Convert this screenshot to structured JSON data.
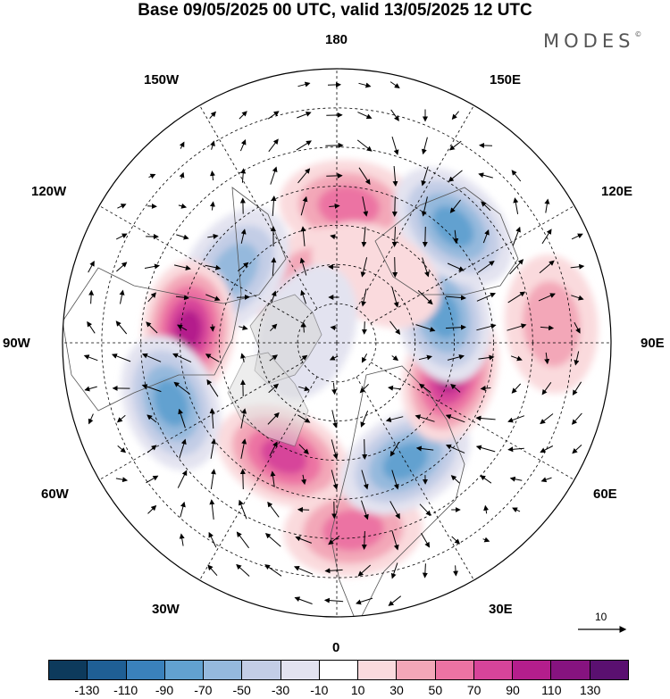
{
  "title": "Base 09/05/2025 00 UTC, valid 13/05/2025 12 UTC",
  "brand": "MODES",
  "brand_mark": "©",
  "longitude_labels": {
    "top": "180",
    "bottom": "0",
    "left": "90W",
    "right": "90E",
    "upper_left_1": "150W",
    "upper_left_2": "120W",
    "lower_left_1": "60W",
    "lower_left_2": "30W",
    "upper_right_1": "150E",
    "upper_right_2": "120E",
    "lower_right_1": "60E",
    "lower_right_2": "30E"
  },
  "vector_reference": "10",
  "colorbar": {
    "colors": [
      "#0d3a5c",
      "#1f5f95",
      "#3a81bc",
      "#62a1d0",
      "#95b9dd",
      "#c3cde6",
      "#e3e3f0",
      "#ffffff",
      "#fadadd",
      "#f3a7b8",
      "#ec73a3",
      "#d7449a",
      "#b41e8c",
      "#86137f",
      "#5a1070"
    ],
    "tick_labels": [
      "-130",
      "-110",
      "-90",
      "-70",
      "-50",
      "-30",
      "-10",
      "10",
      "30",
      "50",
      "70",
      "90",
      "110",
      "130"
    ]
  },
  "anomaly_centers": [
    {
      "lon": 175,
      "lat": 55,
      "value": 60
    },
    {
      "lon": -160,
      "lat": 72,
      "value": 30
    },
    {
      "lon": -125,
      "lat": 58,
      "value": -60
    },
    {
      "lon": -95,
      "lat": 52,
      "value": 95
    },
    {
      "lon": -70,
      "lat": 45,
      "value": -85
    },
    {
      "lon": -25,
      "lat": 58,
      "value": 70
    },
    {
      "lon": 5,
      "lat": 42,
      "value": 65
    },
    {
      "lon": 30,
      "lat": 55,
      "value": -85
    },
    {
      "lon": 75,
      "lat": 60,
      "value": 95
    },
    {
      "lon": 105,
      "lat": 62,
      "value": -75
    },
    {
      "lon": 135,
      "lat": 48,
      "value": -80
    },
    {
      "lon": 150,
      "lat": 70,
      "value": 25
    },
    {
      "lon": 95,
      "lat": 35,
      "value": 35
    },
    {
      "lon": -110,
      "lat": 82,
      "value": -20
    }
  ]
}
